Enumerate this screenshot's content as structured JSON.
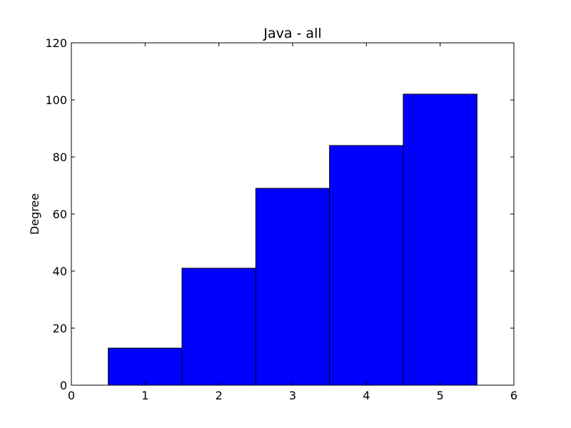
{
  "chart_data": {
    "type": "bar",
    "title": "Java - all",
    "xlabel": "",
    "ylabel": "Degree",
    "x": [
      1,
      2,
      3,
      4,
      5
    ],
    "values": [
      13,
      41,
      69,
      84,
      102
    ],
    "bar_width": 1,
    "xlim": [
      0,
      6
    ],
    "ylim": [
      0,
      120
    ],
    "xticks": [
      "0",
      "1",
      "2",
      "3",
      "4",
      "5",
      "6"
    ],
    "yticks": [
      "0",
      "20",
      "40",
      "60",
      "80",
      "100",
      "120"
    ],
    "grid": false,
    "legend": "none",
    "colors": {
      "bar_fill": "#0000ff",
      "bar_edge": "#000000",
      "axes": "#000000",
      "background": "#ffffff"
    }
  }
}
